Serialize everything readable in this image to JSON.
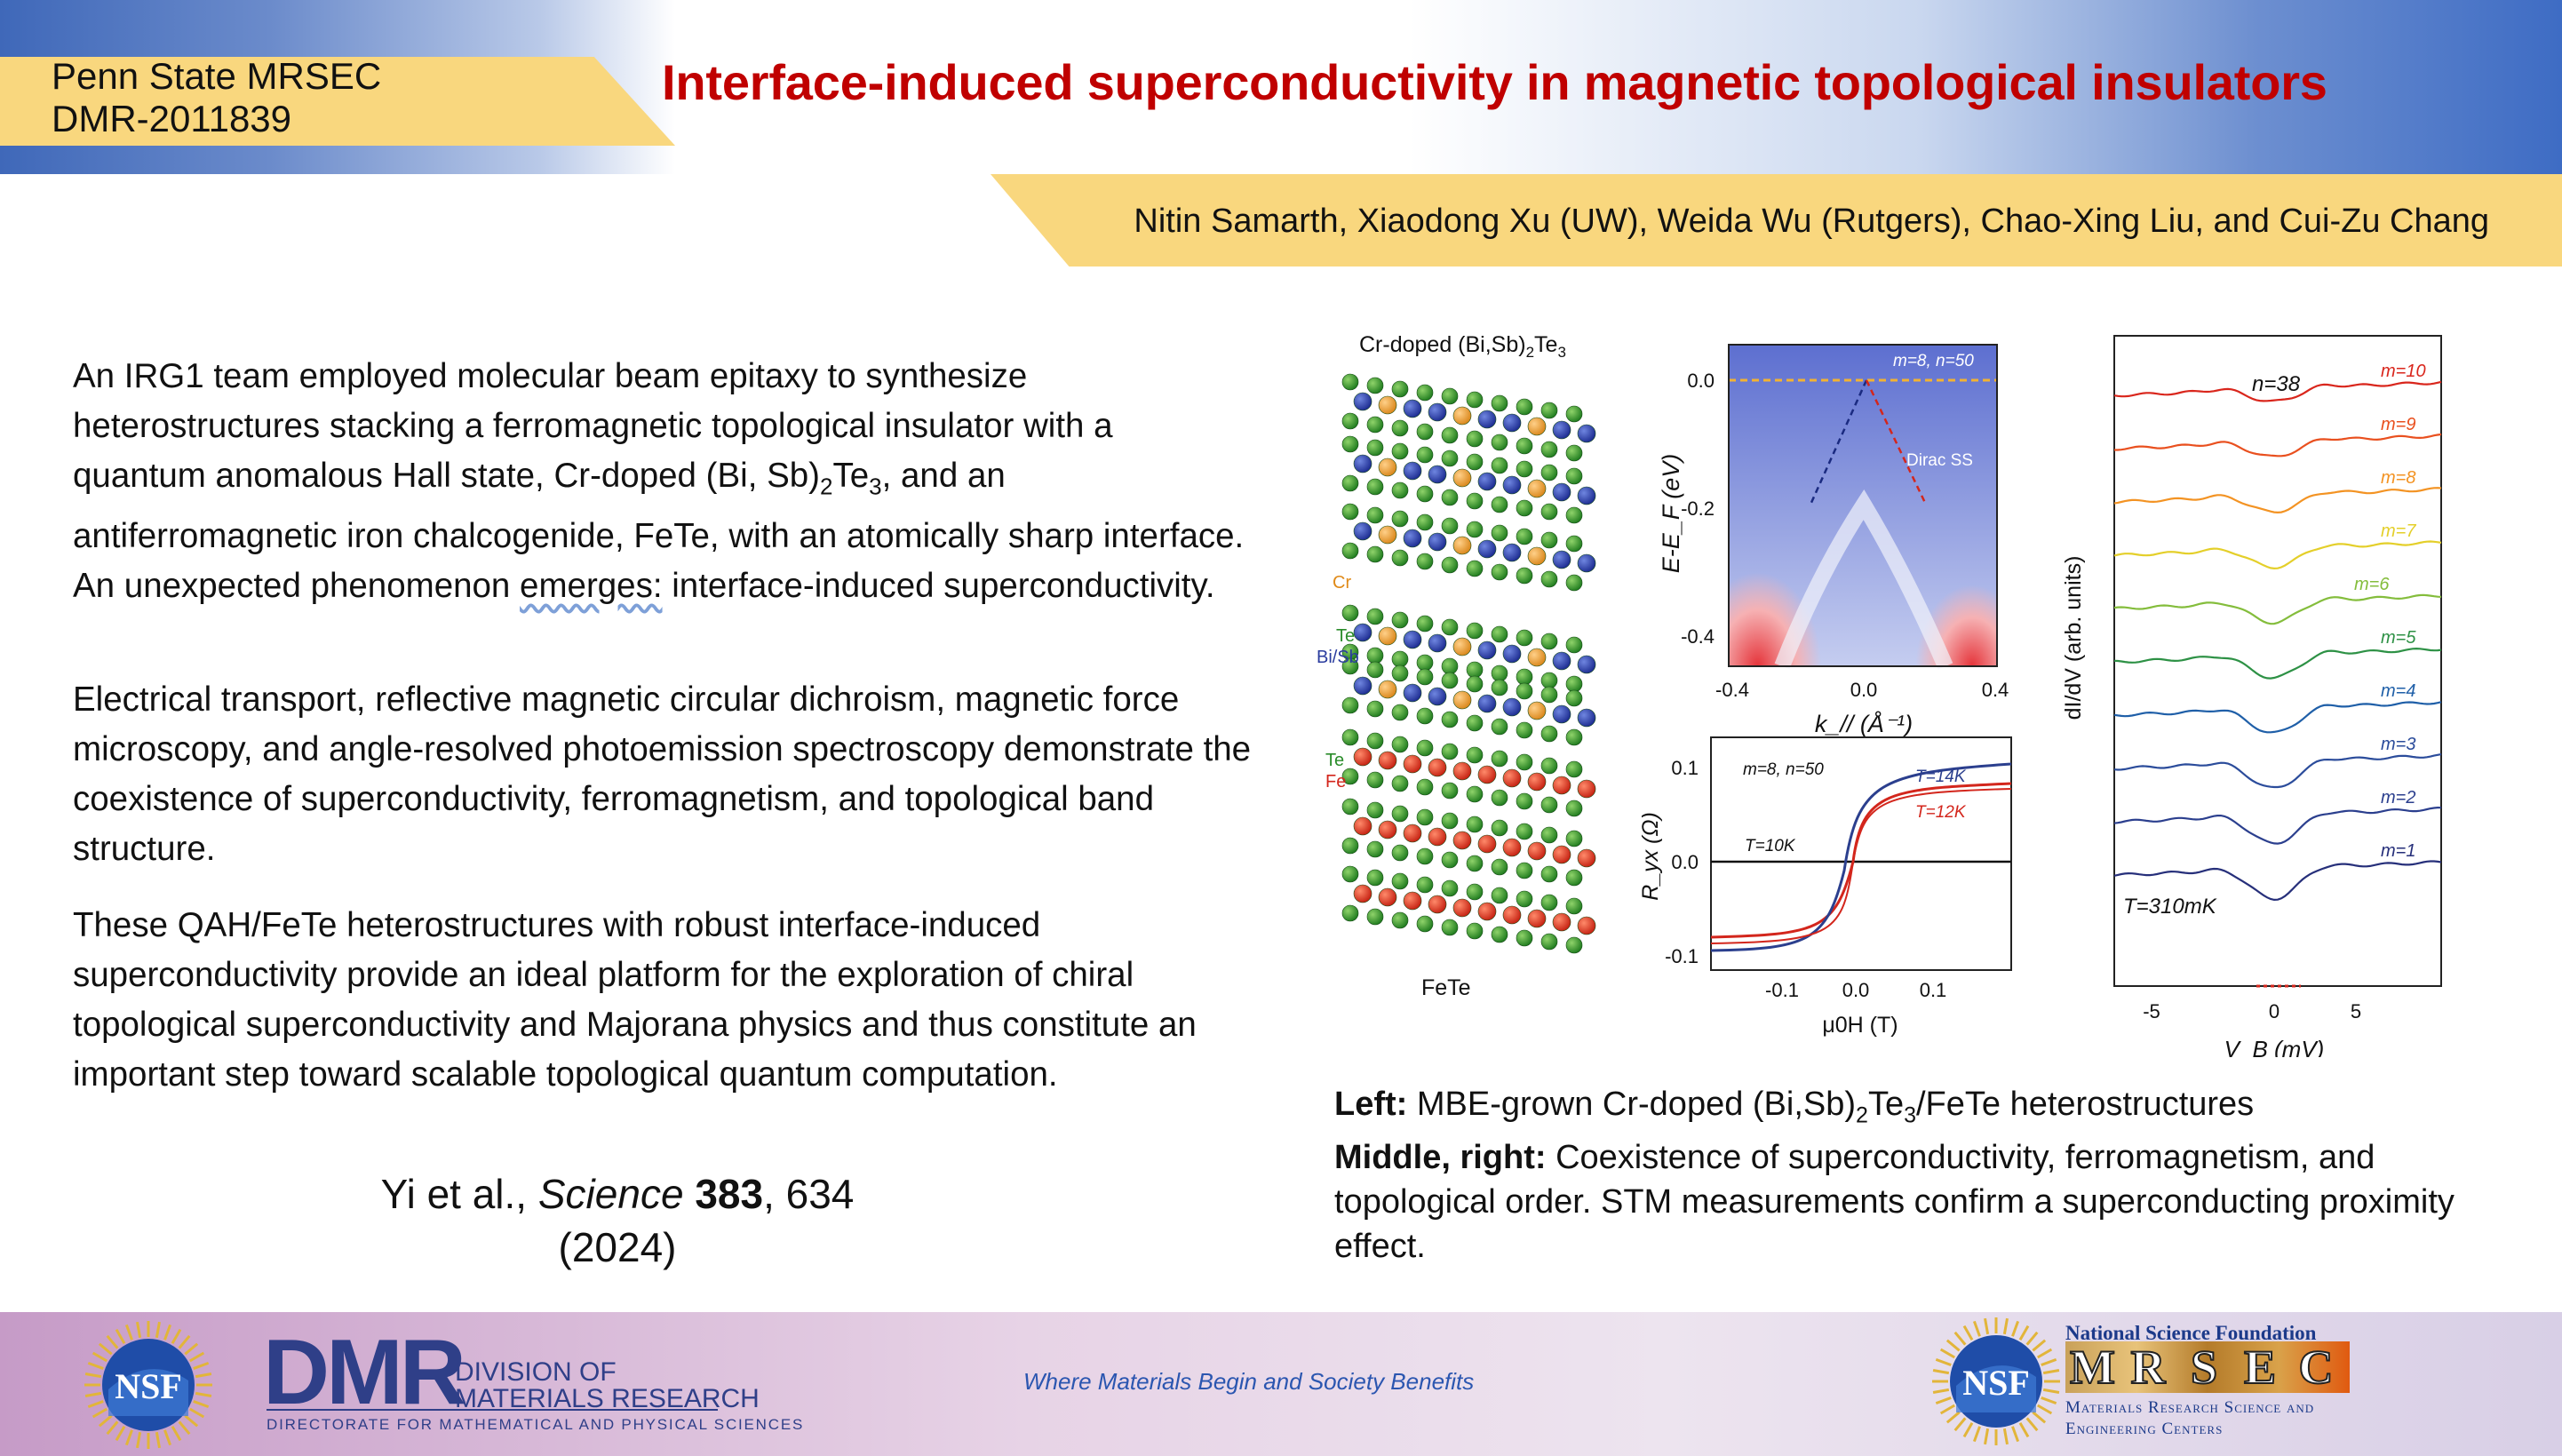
{
  "header": {
    "org_line1": "Penn State MRSEC",
    "org_line2": "DMR-2011839",
    "title": "Interface-induced superconductivity in magnetic topological insulators",
    "authors": "Nitin Samarth, Xiaodong Xu (UW), Weida Wu (Rutgers), Chao-Xing Liu, and Cui-Zu Chang"
  },
  "body": {
    "p1_a": "An IRG1 team employed molecular beam epitaxy to synthesize heterostructures stacking a ferromagnetic topological insulator with a quantum anomalous Hall state, Cr-doped (Bi, Sb)",
    "p1_sub": "2",
    "p1_b": "Te",
    "p1_sub2": "3",
    "p1_c": ", and an antiferromagnetic iron chalcogenide, FeTe, with an atomically sharp interface. An unexpected phenomenon ",
    "p1_d": "emerges:",
    "p1_e": " interface-induced superconductivity.",
    "p2": "Electrical transport, reflective magnetic circular dichroism, magnetic force microscopy, and angle-resolved photoemission spectroscopy demonstrate the coexistence of superconductivity, ferromagnetism, and topological band structure.",
    "p3": "These QAH/FeTe heterostructures with robust interface-induced superconductivity provide an ideal platform for the exploration of chiral topological superconductivity and Majorana physics and thus constitute an important step toward scalable topological quantum computation.",
    "cite_a": "Yi et al., ",
    "cite_journal": "Science",
    "cite_vol": "383",
    "cite_b": ", 634",
    "cite_year": "(2024)"
  },
  "figure": {
    "structure_title_a": "Cr-doped (Bi,Sb)",
    "structure_title_sub": "2",
    "structure_title_b": "Te",
    "structure_title_sub2": "3",
    "label_cr": "Cr",
    "label_te1": "Te",
    "label_bisb": "Bi/Sb",
    "label_te2": "Te",
    "label_fe": "Fe",
    "label_fete": "FeTe",
    "arpes": {
      "annotation": "m=8, n=50",
      "dirac_label": "Dirac SS",
      "ylabel": "E-E_F (eV)",
      "xlabel": "k_// (Å⁻¹)",
      "yticks": [
        "0.0",
        "-0.2",
        "-0.4"
      ],
      "xticks": [
        "-0.4",
        "0.0",
        "0.4"
      ]
    },
    "hall": {
      "annotation": "m=8, n=50",
      "ylabel": "R_yx (Ω)",
      "xlabel": "μ0H (T)",
      "yticks": [
        "0.1",
        "0.0",
        "-0.1"
      ],
      "xticks": [
        "-0.1",
        "0.0",
        "0.1"
      ],
      "curve_labels": [
        "T=14K",
        "T=12K",
        "T=10K"
      ]
    },
    "stm": {
      "top_label": "n=38",
      "temp_label": "T=310mK",
      "ylabel": "dI/dV (arb. units)",
      "xlabel": "V_B (mV)",
      "xticks": [
        "-5",
        "0",
        "5"
      ],
      "curves": [
        {
          "label": "m=10",
          "color": "#d9261c"
        },
        {
          "label": "m=9",
          "color": "#e9501f"
        },
        {
          "label": "m=8",
          "color": "#f39323"
        },
        {
          "label": "m=7",
          "color": "#e4cf2a"
        },
        {
          "label": "m=6",
          "color": "#84bd3c"
        },
        {
          "label": "m=5",
          "color": "#2d9145"
        },
        {
          "label": "m=4",
          "color": "#1f5fa8"
        },
        {
          "label": "m=3",
          "color": "#2b4c9b"
        },
        {
          "label": "m=2",
          "color": "#2b3f8e"
        },
        {
          "label": "m=1",
          "color": "#262f7a"
        }
      ]
    }
  },
  "caption": {
    "left_bold": "Left:",
    "left_text_a": " MBE-grown Cr-doped (Bi,Sb)",
    "left_sub": "2",
    "left_text_b": "Te",
    "left_sub2": "3",
    "left_text_c": "/FeTe heterostructures",
    "mid_bold": "Middle, right:",
    "mid_text": " Coexistence of superconductivity, ferromagnetism, and topological order. STM measurements confirm a superconducting proximity effect."
  },
  "footer": {
    "tagline": "Where Materials Begin and Society Benefits",
    "dmr_letters": "DMR",
    "dmr_line1": "DIVISION OF",
    "dmr_line2": "MATERIALS RESEARCH",
    "dmr_sub": "DIRECTORATE FOR MATHEMATICAL AND PHYSICAL SCIENCES",
    "nsf_logo_text": "NSF",
    "nsf_top": "National Science Foundation",
    "mrsec_letters": [
      "M",
      "R",
      "S",
      "E",
      "C"
    ],
    "mrsec_sub1": "Materials Research Science and",
    "mrsec_sub2": "Engineering Centers"
  },
  "colors": {
    "title_red": "#c00000",
    "tag_yellow": "#f9d77e",
    "header_blue": "#3e6cc4"
  }
}
